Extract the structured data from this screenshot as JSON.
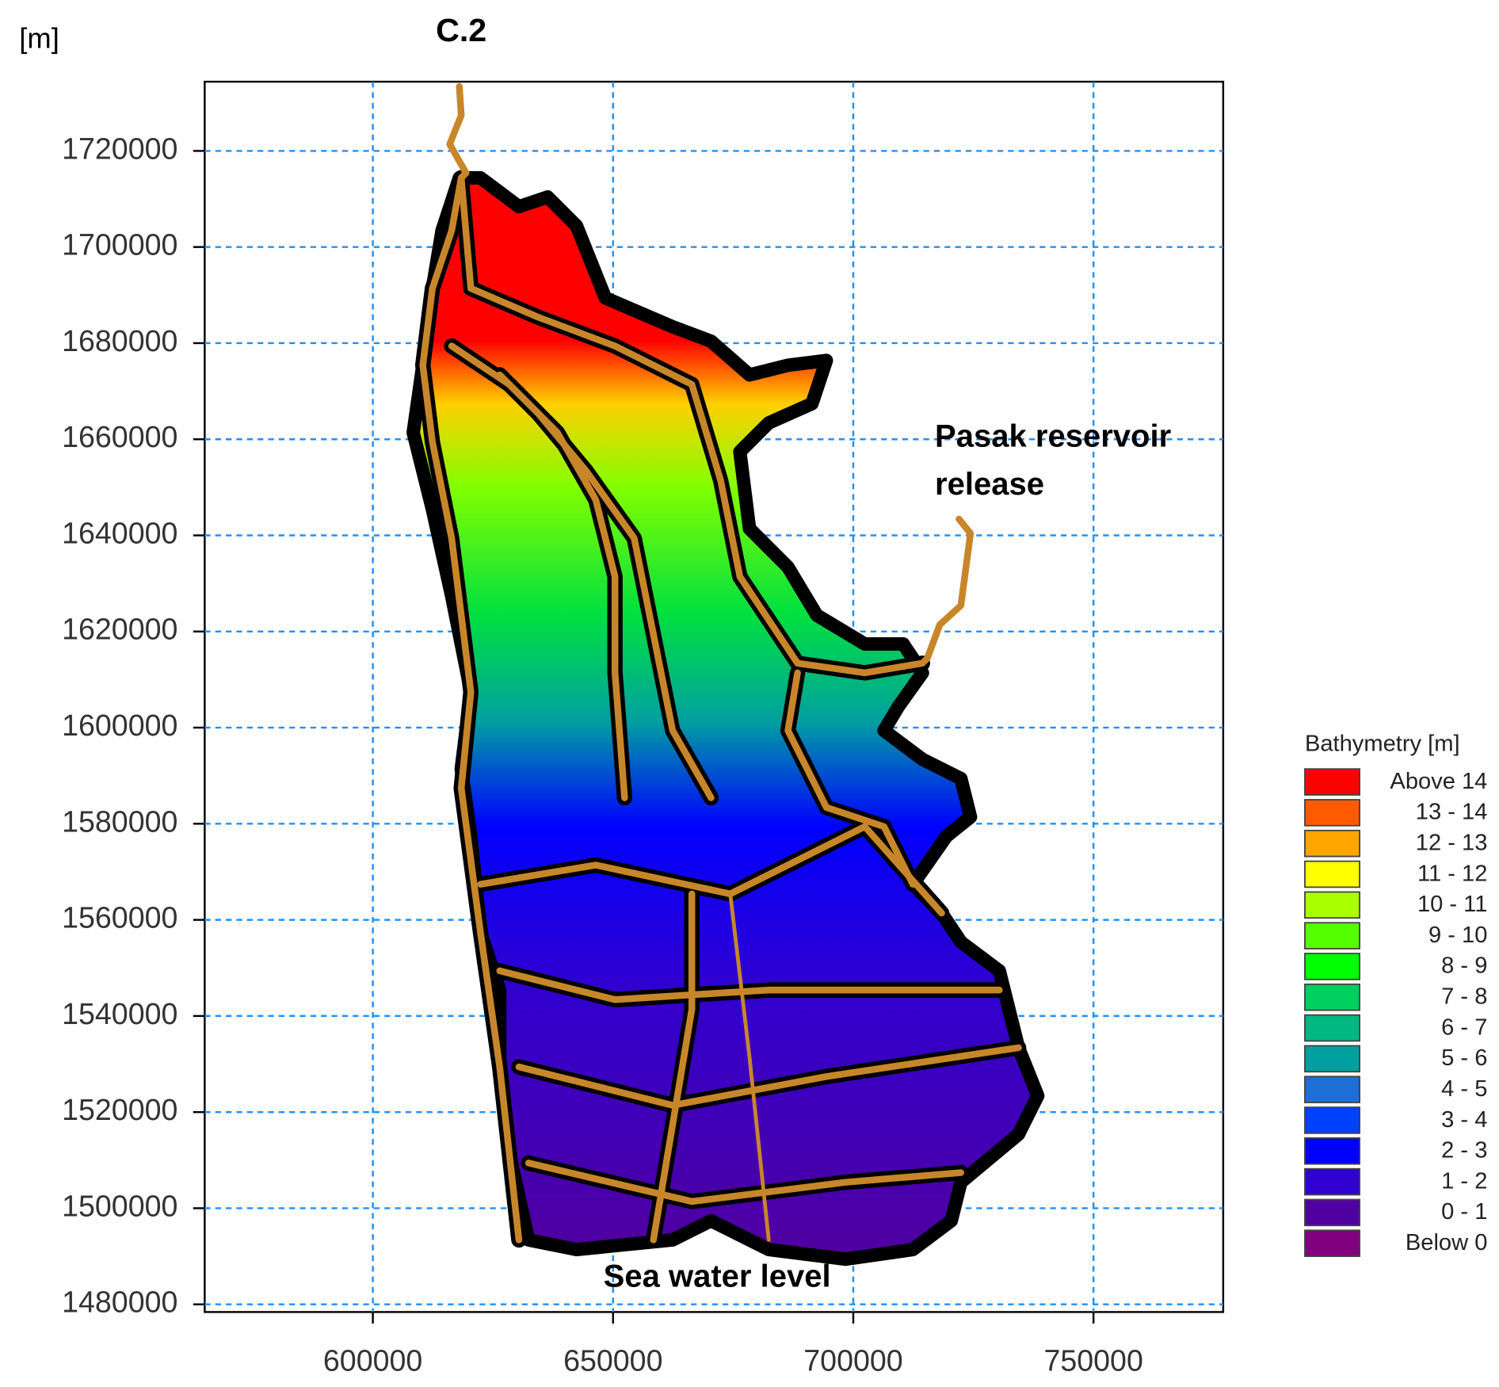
{
  "title": "C.2",
  "unit_label": "[m]",
  "x_axis": {
    "lim": [
      565000,
      777000
    ],
    "ticks": [
      600000,
      650000,
      700000,
      750000
    ]
  },
  "y_axis": {
    "lim": [
      1478400,
      1734400
    ],
    "ticks": [
      1480000,
      1500000,
      1520000,
      1540000,
      1560000,
      1580000,
      1600000,
      1620000,
      1640000,
      1660000,
      1680000,
      1700000,
      1720000
    ]
  },
  "grid": true,
  "legend": {
    "title": "Bathymetry [m]",
    "items": [
      {
        "label": "Above 14",
        "color": "#ff0000"
      },
      {
        "label": "13 - 14",
        "color": "#ff5a00"
      },
      {
        "label": "12 - 13",
        "color": "#ffa500"
      },
      {
        "label": "11 - 12",
        "color": "#ffff00"
      },
      {
        "label": "10 - 11",
        "color": "#aaff00"
      },
      {
        "label": "9 - 10",
        "color": "#55ff00"
      },
      {
        "label": "8 - 9",
        "color": "#00ff00"
      },
      {
        "label": "7 - 8",
        "color": "#00d060"
      },
      {
        "label": "6 - 7",
        "color": "#00b880"
      },
      {
        "label": "5 - 6",
        "color": "#00a0a0"
      },
      {
        "label": "4 - 5",
        "color": "#1e6ed8"
      },
      {
        "label": "3 - 4",
        "color": "#0040ff"
      },
      {
        "label": "2 - 3",
        "color": "#0000ff"
      },
      {
        "label": "1 - 2",
        "color": "#3000d0"
      },
      {
        "label": "0 - 1",
        "color": "#5000a0"
      },
      {
        "label": "Below 0",
        "color": "#800080"
      }
    ]
  },
  "annotations": {
    "reservoir": [
      "Pasak reservoir",
      "release"
    ],
    "sea": "Sea water level"
  }
}
